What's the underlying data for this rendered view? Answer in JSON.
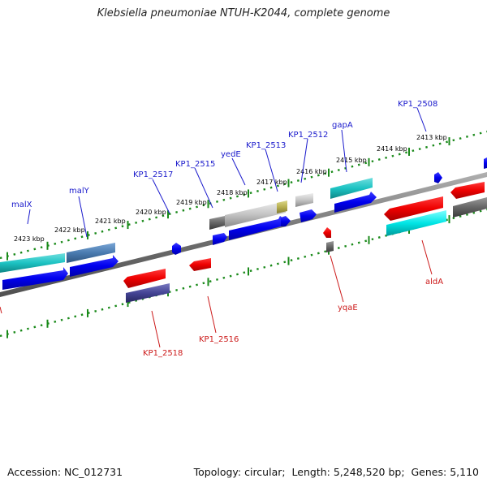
{
  "title": "Klebsiella pneumoniae NTUH-K2044, complete genome",
  "footer": {
    "accession_label": "Accession:",
    "accession": "NC_012731",
    "topology_label": "Topology:",
    "topology": "circular",
    "length_label": "Length:",
    "length": "5,248,520 bp",
    "genes_label": "Genes:",
    "genes": "5,110"
  },
  "colors": {
    "forward_label": "#1a1acc",
    "reverse_label": "#cc1a1a",
    "ruler_ticks": "#1a8a1a",
    "backbone": "#808080"
  },
  "ticks": [
    "2413 kbp",
    "2414 kbp",
    "2415 kbp",
    "2416 kbp",
    "2417 kbp",
    "2418 kbp",
    "2419 kbp",
    "2420 kbp",
    "2421 kbp",
    "2422 kbp",
    "2423 kbp"
  ],
  "forward_genes": [
    "KP1_2508",
    "gapA",
    "KP1_2512",
    "KP1_2513",
    "yedE",
    "KP1_2515",
    "KP1_2517",
    "malY",
    "malX"
  ],
  "reverse_genes": [
    "aldA",
    "yqaE",
    "KP1_2516",
    "KP1_2518"
  ]
}
